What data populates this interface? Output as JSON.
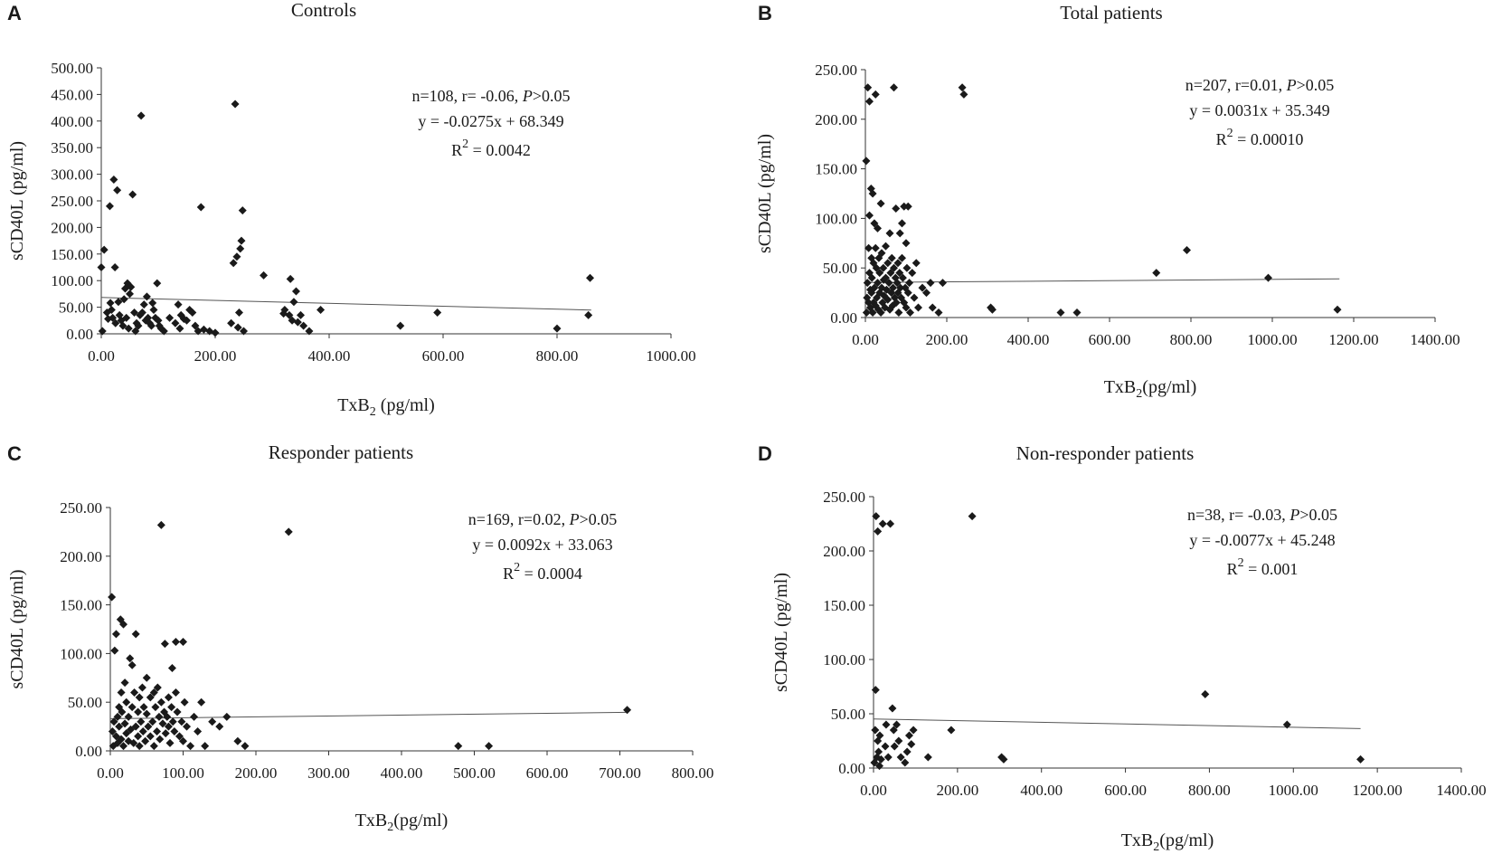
{
  "chart_data": [
    {
      "type": "scatter",
      "panel": "A",
      "title": "Controls",
      "xlabel": "TxB",
      "xlabel_sub": "2",
      "xlabel_unit": " (pg/ml)",
      "ylabel": "sCD40L (pg/ml)",
      "xlim": [
        0,
        1000
      ],
      "ylim": [
        0,
        500
      ],
      "xticks": [
        "0.00",
        "200.00",
        "400.00",
        "600.00",
        "800.00",
        "1000.00"
      ],
      "yticks": [
        "0.00",
        "50.00",
        "100.00",
        "150.00",
        "200.00",
        "250.00",
        "300.00",
        "350.00",
        "400.00",
        "450.00",
        "500.00"
      ],
      "annotation": {
        "stats_prefix": "n=108, r= -0.06,",
        "p_label": "P",
        "p_value": ">0.05",
        "equation": "y = -0.0275x + 68.349",
        "r2_label": "R",
        "r2_sup": "2",
        "r2_value": " = 0.0042"
      },
      "fit": {
        "slope": -0.0275,
        "intercept": 68.349,
        "x_range": [
          0,
          860
        ]
      },
      "points": [
        [
          0,
          125
        ],
        [
          2,
          5
        ],
        [
          5,
          158
        ],
        [
          10,
          40
        ],
        [
          12,
          28
        ],
        [
          15,
          240
        ],
        [
          16,
          58
        ],
        [
          18,
          45
        ],
        [
          20,
          30
        ],
        [
          22,
          290
        ],
        [
          24,
          125
        ],
        [
          25,
          20
        ],
        [
          28,
          270
        ],
        [
          30,
          60
        ],
        [
          32,
          35
        ],
        [
          35,
          25
        ],
        [
          38,
          15
        ],
        [
          40,
          65
        ],
        [
          42,
          85
        ],
        [
          44,
          30
        ],
        [
          46,
          95
        ],
        [
          48,
          10
        ],
        [
          50,
          75
        ],
        [
          52,
          88
        ],
        [
          55,
          262
        ],
        [
          58,
          40
        ],
        [
          60,
          5
        ],
        [
          62,
          20
        ],
        [
          65,
          15
        ],
        [
          68,
          35
        ],
        [
          70,
          410
        ],
        [
          72,
          40
        ],
        [
          75,
          55
        ],
        [
          78,
          25
        ],
        [
          80,
          70
        ],
        [
          82,
          30
        ],
        [
          85,
          20
        ],
        [
          88,
          15
        ],
        [
          90,
          58
        ],
        [
          92,
          45
        ],
        [
          95,
          30
        ],
        [
          98,
          95
        ],
        [
          100,
          25
        ],
        [
          102,
          15
        ],
        [
          105,
          10
        ],
        [
          110,
          5
        ],
        [
          120,
          30
        ],
        [
          130,
          20
        ],
        [
          135,
          55
        ],
        [
          138,
          10
        ],
        [
          140,
          35
        ],
        [
          145,
          28
        ],
        [
          150,
          25
        ],
        [
          155,
          45
        ],
        [
          160,
          40
        ],
        [
          165,
          15
        ],
        [
          170,
          5
        ],
        [
          175,
          238
        ],
        [
          180,
          8
        ],
        [
          190,
          5
        ],
        [
          200,
          2
        ],
        [
          228,
          20
        ],
        [
          232,
          133
        ],
        [
          235,
          432
        ],
        [
          238,
          145
        ],
        [
          240,
          12
        ],
        [
          242,
          40
        ],
        [
          244,
          160
        ],
        [
          246,
          175
        ],
        [
          248,
          232
        ],
        [
          250,
          5
        ],
        [
          285,
          110
        ],
        [
          320,
          38
        ],
        [
          322,
          45
        ],
        [
          330,
          35
        ],
        [
          332,
          103
        ],
        [
          335,
          25
        ],
        [
          338,
          60
        ],
        [
          342,
          80
        ],
        [
          345,
          22
        ],
        [
          350,
          35
        ],
        [
          355,
          15
        ],
        [
          365,
          5
        ],
        [
          385,
          45
        ],
        [
          525,
          15
        ],
        [
          590,
          40
        ],
        [
          800,
          10
        ],
        [
          855,
          35
        ],
        [
          858,
          105
        ]
      ]
    },
    {
      "type": "scatter",
      "panel": "B",
      "title": "Total patients",
      "xlabel": "TxB",
      "xlabel_sub": "2",
      "xlabel_unit": "(pg/ml)",
      "ylabel": "sCD40L (pg/ml)",
      "xlim": [
        0,
        1400
      ],
      "ylim": [
        0,
        250
      ],
      "xticks": [
        "0.00",
        "200.00",
        "400.00",
        "600.00",
        "800.00",
        "1000.00",
        "1200.00",
        "1400.00"
      ],
      "yticks": [
        "0.00",
        "50.00",
        "100.00",
        "150.00",
        "200.00",
        "250.00"
      ],
      "annotation": {
        "stats_prefix": "n=207, r=0.01,",
        "p_label": "P",
        "p_value": ">0.05",
        "equation": "y = 0.0031x + 35.349",
        "r2_label": "R",
        "r2_sup": "2",
        "r2_value": " = 0.00010"
      },
      "fit": {
        "slope": 0.0031,
        "intercept": 35.349,
        "x_range": [
          0,
          1165
        ]
      },
      "points": [
        [
          2,
          158
        ],
        [
          3,
          5
        ],
        [
          4,
          20
        ],
        [
          5,
          35
        ],
        [
          6,
          232
        ],
        [
          8,
          15
        ],
        [
          8,
          70
        ],
        [
          10,
          218
        ],
        [
          10,
          103
        ],
        [
          10,
          45
        ],
        [
          12,
          28
        ],
        [
          12,
          10
        ],
        [
          14,
          130
        ],
        [
          15,
          60
        ],
        [
          15,
          25
        ],
        [
          16,
          40
        ],
        [
          18,
          125
        ],
        [
          18,
          5
        ],
        [
          20,
          55
        ],
        [
          20,
          15
        ],
        [
          22,
          95
        ],
        [
          22,
          30
        ],
        [
          25,
          225
        ],
        [
          25,
          12
        ],
        [
          25,
          70
        ],
        [
          27,
          50
        ],
        [
          28,
          20
        ],
        [
          30,
          90
        ],
        [
          30,
          35
        ],
        [
          32,
          8
        ],
        [
          33,
          60
        ],
        [
          35,
          25
        ],
        [
          35,
          45
        ],
        [
          38,
          115
        ],
        [
          38,
          5
        ],
        [
          40,
          30
        ],
        [
          40,
          65
        ],
        [
          42,
          15
        ],
        [
          44,
          50
        ],
        [
          45,
          38
        ],
        [
          46,
          22
        ],
        [
          48,
          10
        ],
        [
          50,
          72
        ],
        [
          50,
          40
        ],
        [
          52,
          28
        ],
        [
          55,
          55
        ],
        [
          55,
          18
        ],
        [
          58,
          35
        ],
        [
          60,
          85
        ],
        [
          60,
          8
        ],
        [
          62,
          45
        ],
        [
          64,
          25
        ],
        [
          65,
          60
        ],
        [
          67,
          12
        ],
        [
          68,
          30
        ],
        [
          70,
          232
        ],
        [
          70,
          50
        ],
        [
          72,
          20
        ],
        [
          74,
          40
        ],
        [
          75,
          110
        ],
        [
          76,
          15
        ],
        [
          78,
          35
        ],
        [
          80,
          55
        ],
        [
          80,
          25
        ],
        [
          82,
          5
        ],
        [
          84,
          45
        ],
        [
          85,
          85
        ],
        [
          86,
          30
        ],
        [
          88,
          20
        ],
        [
          90,
          95
        ],
        [
          90,
          60
        ],
        [
          92,
          40
        ],
        [
          95,
          112
        ],
        [
          95,
          15
        ],
        [
          98,
          30
        ],
        [
          100,
          75
        ],
        [
          100,
          10
        ],
        [
          102,
          50
        ],
        [
          105,
          112
        ],
        [
          105,
          25
        ],
        [
          108,
          35
        ],
        [
          110,
          5
        ],
        [
          115,
          45
        ],
        [
          120,
          20
        ],
        [
          125,
          55
        ],
        [
          130,
          10
        ],
        [
          140,
          30
        ],
        [
          150,
          25
        ],
        [
          160,
          35
        ],
        [
          165,
          10
        ],
        [
          180,
          5
        ],
        [
          190,
          35
        ],
        [
          238,
          232
        ],
        [
          242,
          225
        ],
        [
          308,
          10
        ],
        [
          312,
          8
        ],
        [
          480,
          5
        ],
        [
          520,
          5
        ],
        [
          715,
          45
        ],
        [
          790,
          68
        ],
        [
          990,
          40
        ],
        [
          1160,
          8
        ]
      ]
    },
    {
      "type": "scatter",
      "panel": "C",
      "title": "Responder patients",
      "xlabel": "TxB",
      "xlabel_sub": "2",
      "xlabel_unit": "(pg/ml)",
      "ylabel": "sCD40L (pg/ml)",
      "xlim": [
        0,
        800
      ],
      "ylim": [
        0,
        250
      ],
      "xticks": [
        "0.00",
        "100.00",
        "200.00",
        "300.00",
        "400.00",
        "500.00",
        "600.00",
        "700.00",
        "800.00"
      ],
      "yticks": [
        "0.00",
        "50.00",
        "100.00",
        "150.00",
        "200.00",
        "250.00"
      ],
      "annotation": {
        "stats_prefix": "n=169, r=0.02,",
        "p_label": "P",
        "p_value": ">0.05",
        "equation": "y = 0.0092x + 33.063",
        "r2_label": "R",
        "r2_sup": "2",
        "r2_value": " = 0.0004"
      },
      "fit": {
        "slope": 0.0092,
        "intercept": 33.063,
        "x_range": [
          0,
          710
        ]
      },
      "points": [
        [
          2,
          158
        ],
        [
          3,
          20
        ],
        [
          4,
          5
        ],
        [
          5,
          30
        ],
        [
          6,
          103
        ],
        [
          8,
          15
        ],
        [
          8,
          120
        ],
        [
          10,
          35
        ],
        [
          10,
          8
        ],
        [
          12,
          45
        ],
        [
          12,
          25
        ],
        [
          14,
          135
        ],
        [
          15,
          60
        ],
        [
          15,
          12
        ],
        [
          16,
          40
        ],
        [
          18,
          130
        ],
        [
          18,
          5
        ],
        [
          20,
          28
        ],
        [
          20,
          70
        ],
        [
          22,
          18
        ],
        [
          22,
          50
        ],
        [
          25,
          10
        ],
        [
          25,
          35
        ],
        [
          27,
          95
        ],
        [
          28,
          22
        ],
        [
          30,
          88
        ],
        [
          30,
          45
        ],
        [
          32,
          8
        ],
        [
          33,
          60
        ],
        [
          35,
          25
        ],
        [
          35,
          120
        ],
        [
          38,
          15
        ],
        [
          38,
          40
        ],
        [
          40,
          55
        ],
        [
          40,
          5
        ],
        [
          42,
          30
        ],
        [
          44,
          65
        ],
        [
          45,
          20
        ],
        [
          46,
          45
        ],
        [
          48,
          10
        ],
        [
          50,
          38
        ],
        [
          50,
          75
        ],
        [
          52,
          25
        ],
        [
          55,
          55
        ],
        [
          55,
          15
        ],
        [
          58,
          30
        ],
        [
          60,
          60
        ],
        [
          60,
          5
        ],
        [
          62,
          45
        ],
        [
          64,
          20
        ],
        [
          65,
          65
        ],
        [
          67,
          35
        ],
        [
          68,
          12
        ],
        [
          70,
          232
        ],
        [
          70,
          50
        ],
        [
          72,
          28
        ],
        [
          74,
          40
        ],
        [
          75,
          110
        ],
        [
          76,
          18
        ],
        [
          78,
          35
        ],
        [
          80,
          55
        ],
        [
          80,
          25
        ],
        [
          82,
          8
        ],
        [
          84,
          45
        ],
        [
          85,
          85
        ],
        [
          86,
          30
        ],
        [
          88,
          20
        ],
        [
          90,
          112
        ],
        [
          90,
          60
        ],
        [
          92,
          40
        ],
        [
          95,
          15
        ],
        [
          98,
          30
        ],
        [
          100,
          112
        ],
        [
          100,
          10
        ],
        [
          102,
          50
        ],
        [
          105,
          25
        ],
        [
          110,
          5
        ],
        [
          115,
          35
        ],
        [
          120,
          20
        ],
        [
          125,
          50
        ],
        [
          130,
          5
        ],
        [
          140,
          30
        ],
        [
          150,
          25
        ],
        [
          160,
          35
        ],
        [
          175,
          10
        ],
        [
          185,
          5
        ],
        [
          245,
          225
        ],
        [
          478,
          5
        ],
        [
          520,
          5
        ],
        [
          710,
          42
        ]
      ]
    },
    {
      "type": "scatter",
      "panel": "D",
      "title": "Non-responder patients",
      "xlabel": "TxB",
      "xlabel_sub": "2",
      "xlabel_unit": "(pg/ml)",
      "ylabel": "sCD40L (pg/ml)",
      "xlim": [
        0,
        1400
      ],
      "ylim": [
        0,
        250
      ],
      "xticks": [
        "0.00",
        "200.00",
        "400.00",
        "600.00",
        "800.00",
        "1000.00",
        "1200.00",
        "1400.00"
      ],
      "yticks": [
        "0.00",
        "50.00",
        "100.00",
        "150.00",
        "200.00",
        "250.00"
      ],
      "annotation": {
        "stats_prefix": "n=38, r= -0.03,",
        "p_label": "P",
        "p_value": ">0.05",
        "equation": "y = -0.0077x + 45.248",
        "r2_label": "R",
        "r2_sup": "2",
        "r2_value": " = 0.001"
      },
      "fit": {
        "slope": -0.0077,
        "intercept": 45.248,
        "x_range": [
          0,
          1160
        ]
      },
      "points": [
        [
          2,
          5
        ],
        [
          4,
          35
        ],
        [
          5,
          72
        ],
        [
          6,
          232
        ],
        [
          8,
          10
        ],
        [
          10,
          218
        ],
        [
          10,
          25
        ],
        [
          12,
          15
        ],
        [
          14,
          2
        ],
        [
          15,
          30
        ],
        [
          18,
          8
        ],
        [
          22,
          225
        ],
        [
          28,
          20
        ],
        [
          30,
          40
        ],
        [
          35,
          10
        ],
        [
          40,
          225
        ],
        [
          45,
          55
        ],
        [
          48,
          35
        ],
        [
          50,
          20
        ],
        [
          55,
          40
        ],
        [
          60,
          25
        ],
        [
          65,
          10
        ],
        [
          75,
          5
        ],
        [
          80,
          15
        ],
        [
          85,
          30
        ],
        [
          90,
          22
        ],
        [
          95,
          35
        ],
        [
          130,
          10
        ],
        [
          185,
          35
        ],
        [
          235,
          232
        ],
        [
          305,
          10
        ],
        [
          310,
          8
        ],
        [
          790,
          68
        ],
        [
          985,
          40
        ],
        [
          1160,
          8
        ]
      ]
    }
  ]
}
